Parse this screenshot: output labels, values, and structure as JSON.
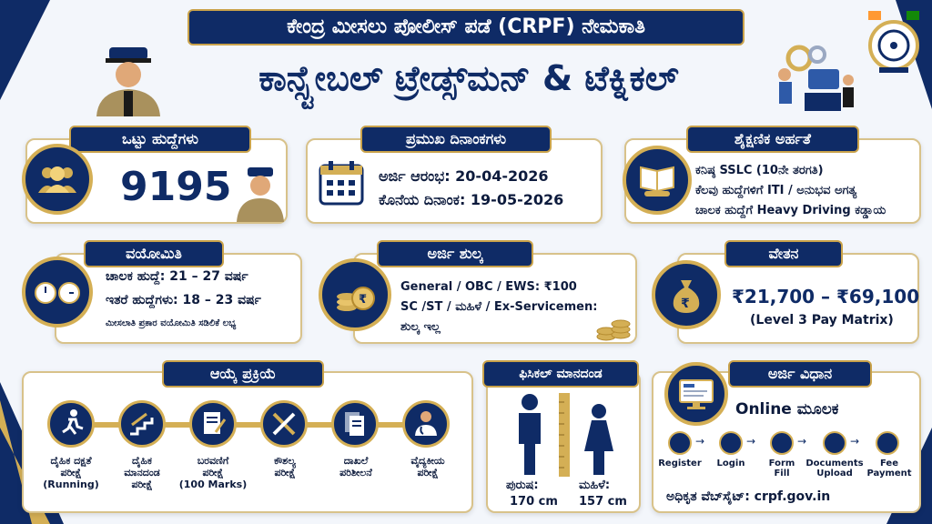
{
  "header": {
    "title": "ಕೇಂದ್ರ ಮೀಸಲು ಪೋಲೀಸ್ ಪಡೆ (CRPF) ನೇಮಕಾತಿ",
    "subtitle": "ಕಾನ್ಸ್ಟೇಬಲ್ ಟ್ರೇಡ್ಸ್‌ಮನ್ & ಟೆಕ್ನಿಕಲ್"
  },
  "vacancies": {
    "heading": "ಒಟ್ಟು ಹುದ್ದೆಗಳು",
    "count": "9195"
  },
  "dates": {
    "heading": "ಪ್ರಮುಖ ದಿನಾಂಕಗಳು",
    "start": "ಅರ್ಜಿ ಆರಂಭ: 20-04-2026",
    "end": "ಕೊನೆಯ ದಿನಾಂಕ: 19-05-2026"
  },
  "education": {
    "heading": "ಶೈಕ್ಷಣಿಕ ಅರ್ಹತೆ",
    "lines": [
      "ಕನಿಷ್ಠ SSLC (10ನೇ ತರಗತಿ)",
      "ಕೆಲವು ಹುದ್ದೆಗಳಿಗೆ ITI / ಅನುಭವ ಅಗತ್ಯ",
      "ಚಾಲಕ ಹುದ್ದೆಗೆ Heavy Driving ಕಡ್ಡಾಯ"
    ]
  },
  "age": {
    "heading": "ವಯೋಮಿತಿ",
    "lines": [
      "ಚಾಲಕ ಹುದ್ದೆ: 21 – 27 ವರ್ಷ",
      "ಇತರೆ ಹುದ್ದೆಗಳು: 18 – 23 ವರ್ಷ"
    ],
    "note": "ಮೀಸಲಾತಿ ಪ್ರಕಾರ ವಯೋಮಿತಿ ಸಡಿಲಿಕೆ ಲಭ್ಯ"
  },
  "fee": {
    "heading": "ಅರ್ಜಿ ಶುಲ್ಕ",
    "lines": [
      "General / OBC / EWS: ₹100",
      "SC /ST / ಮಹಿಳೆ / Ex-Servicemen:",
      "ಶುಲ್ಕ ಇಲ್ಲ"
    ]
  },
  "salary": {
    "heading": "ವೇತನ",
    "range": "₹21,700 – ₹69,100",
    "matrix": "(Level 3 Pay Matrix)"
  },
  "selection": {
    "heading": "ಆಯ್ಕೆ ಪ್ರಕ್ರಿಯೆ",
    "steps": [
      {
        "l1": "ದೈಹಿಕ ದಕ್ಷತೆ",
        "l2": "ಪರೀಕ್ಷೆ",
        "l3": "(Running)"
      },
      {
        "l1": "ದೈಹಿಕ",
        "l2": "ಮಾನದಂಡ",
        "l3": "ಪರೀಕ್ಷೆ"
      },
      {
        "l1": "ಬರವಣಿಗೆ",
        "l2": "ಪರೀಕ್ಷೆ",
        "l3": "(100 Marks)"
      },
      {
        "l1": "ಕೌಶಲ್ಯ",
        "l2": "ಪರೀಕ್ಷೆ",
        "l3": ""
      },
      {
        "l1": "ದಾಖಲೆ",
        "l2": "ಪರಿಶೀಲನೆ",
        "l3": ""
      },
      {
        "l1": "ವೈದ್ಯಕೀಯ",
        "l2": "ಪರೀಕ್ಷೆ",
        "l3": ""
      }
    ]
  },
  "physical": {
    "heading": "ಫಿಸಿಕಲ್ ಮಾನದಂಡ",
    "male_label": "ಪುರುಷ:",
    "male_value": "170 cm",
    "female_label": "ಮಹಿಳೆ:",
    "female_value": "157 cm"
  },
  "apply": {
    "heading": "ಅರ್ಜಿ ವಿಧಾನ",
    "mode": "Online ಮೂಲಕ",
    "steps": [
      {
        "l1": "Register",
        "l2": ""
      },
      {
        "l1": "Login",
        "l2": ""
      },
      {
        "l1": "Form",
        "l2": "Fill"
      },
      {
        "l1": "Documents",
        "l2": "Upload"
      },
      {
        "l1": "Fee",
        "l2": "Payment"
      }
    ],
    "website": "ಅಧಿಕೃತ ವೆಬ್‌ಸೈಟ್: crpf.gov.in"
  },
  "colors": {
    "navy": "#0f2b66",
    "gold": "#d4af55"
  }
}
